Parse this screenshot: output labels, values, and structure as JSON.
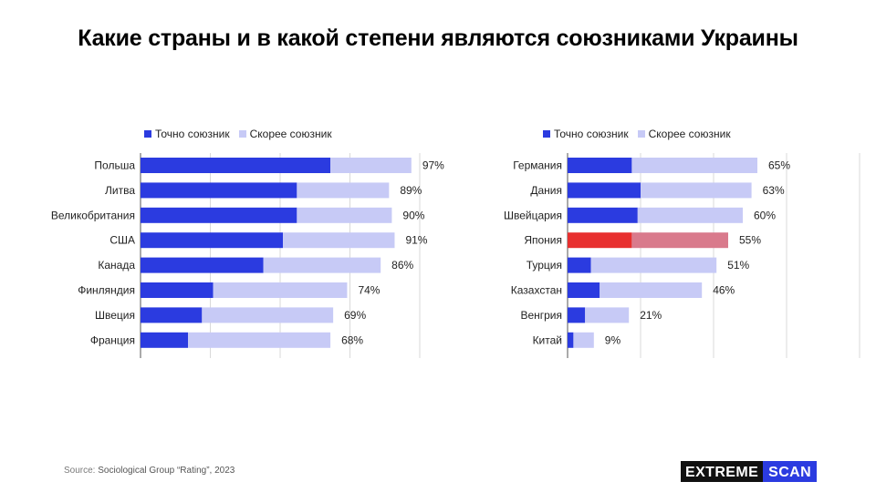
{
  "title": "Какие страны и в какой степени являются союзниками Украины",
  "legend": {
    "definite": "Точно союзник",
    "likely": "Скорее союзник"
  },
  "colors": {
    "definite": "#2b3be0",
    "likely": "#c7caf6",
    "highlight_definite": "#e8302f",
    "highlight_likely": "#d97a8c"
  },
  "source": {
    "label": "Source:",
    "text": "Sociological Group “Rating”, 2023"
  },
  "logo": {
    "part1": "EXTREME",
    "part2": "SCAN"
  },
  "chart_data": [
    {
      "type": "bar",
      "orientation": "horizontal",
      "stacked": true,
      "xlim": [
        0,
        100
      ],
      "grid": true,
      "legend_position": "top",
      "categories": [
        "Польша",
        "Литва",
        "Великобритания",
        "США",
        "Канада",
        "Финляндия",
        "Швеция",
        "Франция"
      ],
      "series": [
        {
          "name": "Точно союзник",
          "values": [
            68,
            56,
            56,
            51,
            44,
            26,
            22,
            17
          ]
        },
        {
          "name": "Скорее союзник",
          "values": [
            29,
            33,
            34,
            40,
            42,
            48,
            47,
            51
          ]
        }
      ],
      "totals": [
        97,
        89,
        90,
        91,
        86,
        74,
        69,
        68
      ],
      "total_labels": [
        "97%",
        "89%",
        "90%",
        "91%",
        "86%",
        "74%",
        "69%",
        "68%"
      ],
      "highlight": null
    },
    {
      "type": "bar",
      "orientation": "horizontal",
      "stacked": true,
      "xlim": [
        0,
        100
      ],
      "grid": true,
      "legend_position": "top",
      "categories": [
        "Германия",
        "Дания",
        "Швейцария",
        "Япония",
        "Турция",
        "Казахстан",
        "Венгрия",
        "Китай"
      ],
      "series": [
        {
          "name": "Точно союзник",
          "values": [
            22,
            25,
            24,
            22,
            8,
            11,
            6,
            2
          ]
        },
        {
          "name": "Скорее союзник",
          "values": [
            43,
            38,
            36,
            33,
            43,
            35,
            15,
            7
          ]
        }
      ],
      "totals": [
        65,
        63,
        60,
        55,
        51,
        46,
        21,
        9
      ],
      "total_labels": [
        "65%",
        "63%",
        "60%",
        "55%",
        "51%",
        "46%",
        "21%",
        "9%"
      ],
      "highlight": "Япония"
    }
  ]
}
